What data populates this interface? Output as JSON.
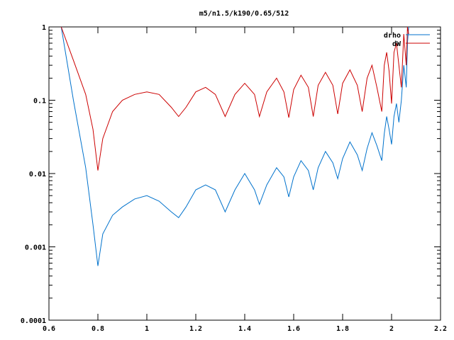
{
  "chart_data": {
    "type": "line",
    "title": "m5/n1.5/k190/0.65/512",
    "xlabel": "",
    "ylabel": "",
    "xlim": [
      0.6,
      2.2
    ],
    "ylim": [
      0.0001,
      1
    ],
    "yscale": "log",
    "grid": false,
    "legend_position": "top-right",
    "x_ticks": [
      0.6,
      0.8,
      1,
      1.2,
      1.4,
      1.6,
      1.8,
      2,
      2.2
    ],
    "x_tick_labels": [
      "0.6",
      "0.8",
      "1",
      "1.2",
      "1.4",
      "1.6",
      "1.8",
      "2",
      "2.2"
    ],
    "y_ticks": [
      0.0001,
      0.001,
      0.01,
      0.1,
      1
    ],
    "y_tick_labels": [
      "0.0001",
      "0.001",
      "0.01",
      "0.1",
      "1"
    ],
    "series": [
      {
        "name": "drho",
        "color": "#0072cc",
        "x": [
          0.65,
          0.7,
          0.75,
          0.78,
          0.8,
          0.82,
          0.86,
          0.9,
          0.95,
          1.0,
          1.05,
          1.1,
          1.13,
          1.16,
          1.2,
          1.24,
          1.28,
          1.32,
          1.36,
          1.4,
          1.44,
          1.46,
          1.49,
          1.53,
          1.56,
          1.58,
          1.6,
          1.63,
          1.66,
          1.68,
          1.7,
          1.73,
          1.76,
          1.78,
          1.8,
          1.83,
          1.86,
          1.88,
          1.9,
          1.92,
          1.94,
          1.96,
          1.97,
          1.98,
          1.99,
          2.0,
          2.01,
          2.02,
          2.03,
          2.04,
          2.05,
          2.06,
          2.065,
          2.07
        ],
        "y": [
          1.0,
          0.1,
          0.012,
          0.002,
          0.00055,
          0.0015,
          0.0027,
          0.0035,
          0.0045,
          0.005,
          0.0042,
          0.003,
          0.0025,
          0.0035,
          0.006,
          0.007,
          0.006,
          0.003,
          0.006,
          0.01,
          0.006,
          0.0038,
          0.007,
          0.012,
          0.009,
          0.0048,
          0.009,
          0.015,
          0.011,
          0.006,
          0.012,
          0.02,
          0.014,
          0.0085,
          0.016,
          0.027,
          0.018,
          0.011,
          0.022,
          0.036,
          0.024,
          0.015,
          0.035,
          0.06,
          0.04,
          0.025,
          0.06,
          0.09,
          0.05,
          0.1,
          0.3,
          0.15,
          0.6,
          1.0
        ]
      },
      {
        "name": "dW",
        "color": "#cc0000",
        "x": [
          0.65,
          0.7,
          0.75,
          0.78,
          0.8,
          0.82,
          0.86,
          0.9,
          0.95,
          1.0,
          1.05,
          1.1,
          1.13,
          1.16,
          1.2,
          1.24,
          1.28,
          1.32,
          1.36,
          1.4,
          1.44,
          1.46,
          1.49,
          1.53,
          1.56,
          1.58,
          1.6,
          1.63,
          1.66,
          1.68,
          1.7,
          1.73,
          1.76,
          1.78,
          1.8,
          1.83,
          1.86,
          1.88,
          1.9,
          1.92,
          1.94,
          1.96,
          1.97,
          1.98,
          1.99,
          2.0,
          2.01,
          2.02,
          2.03,
          2.04,
          2.05,
          2.06,
          2.065,
          2.07
        ],
        "y": [
          1.0,
          0.35,
          0.12,
          0.04,
          0.011,
          0.03,
          0.07,
          0.1,
          0.12,
          0.13,
          0.12,
          0.08,
          0.06,
          0.08,
          0.13,
          0.15,
          0.12,
          0.06,
          0.12,
          0.17,
          0.12,
          0.06,
          0.13,
          0.2,
          0.13,
          0.058,
          0.14,
          0.22,
          0.15,
          0.06,
          0.16,
          0.24,
          0.16,
          0.065,
          0.17,
          0.26,
          0.16,
          0.07,
          0.2,
          0.3,
          0.15,
          0.07,
          0.3,
          0.45,
          0.25,
          0.09,
          0.45,
          0.6,
          0.3,
          0.15,
          0.8,
          0.3,
          1.0,
          0.8
        ]
      }
    ]
  }
}
